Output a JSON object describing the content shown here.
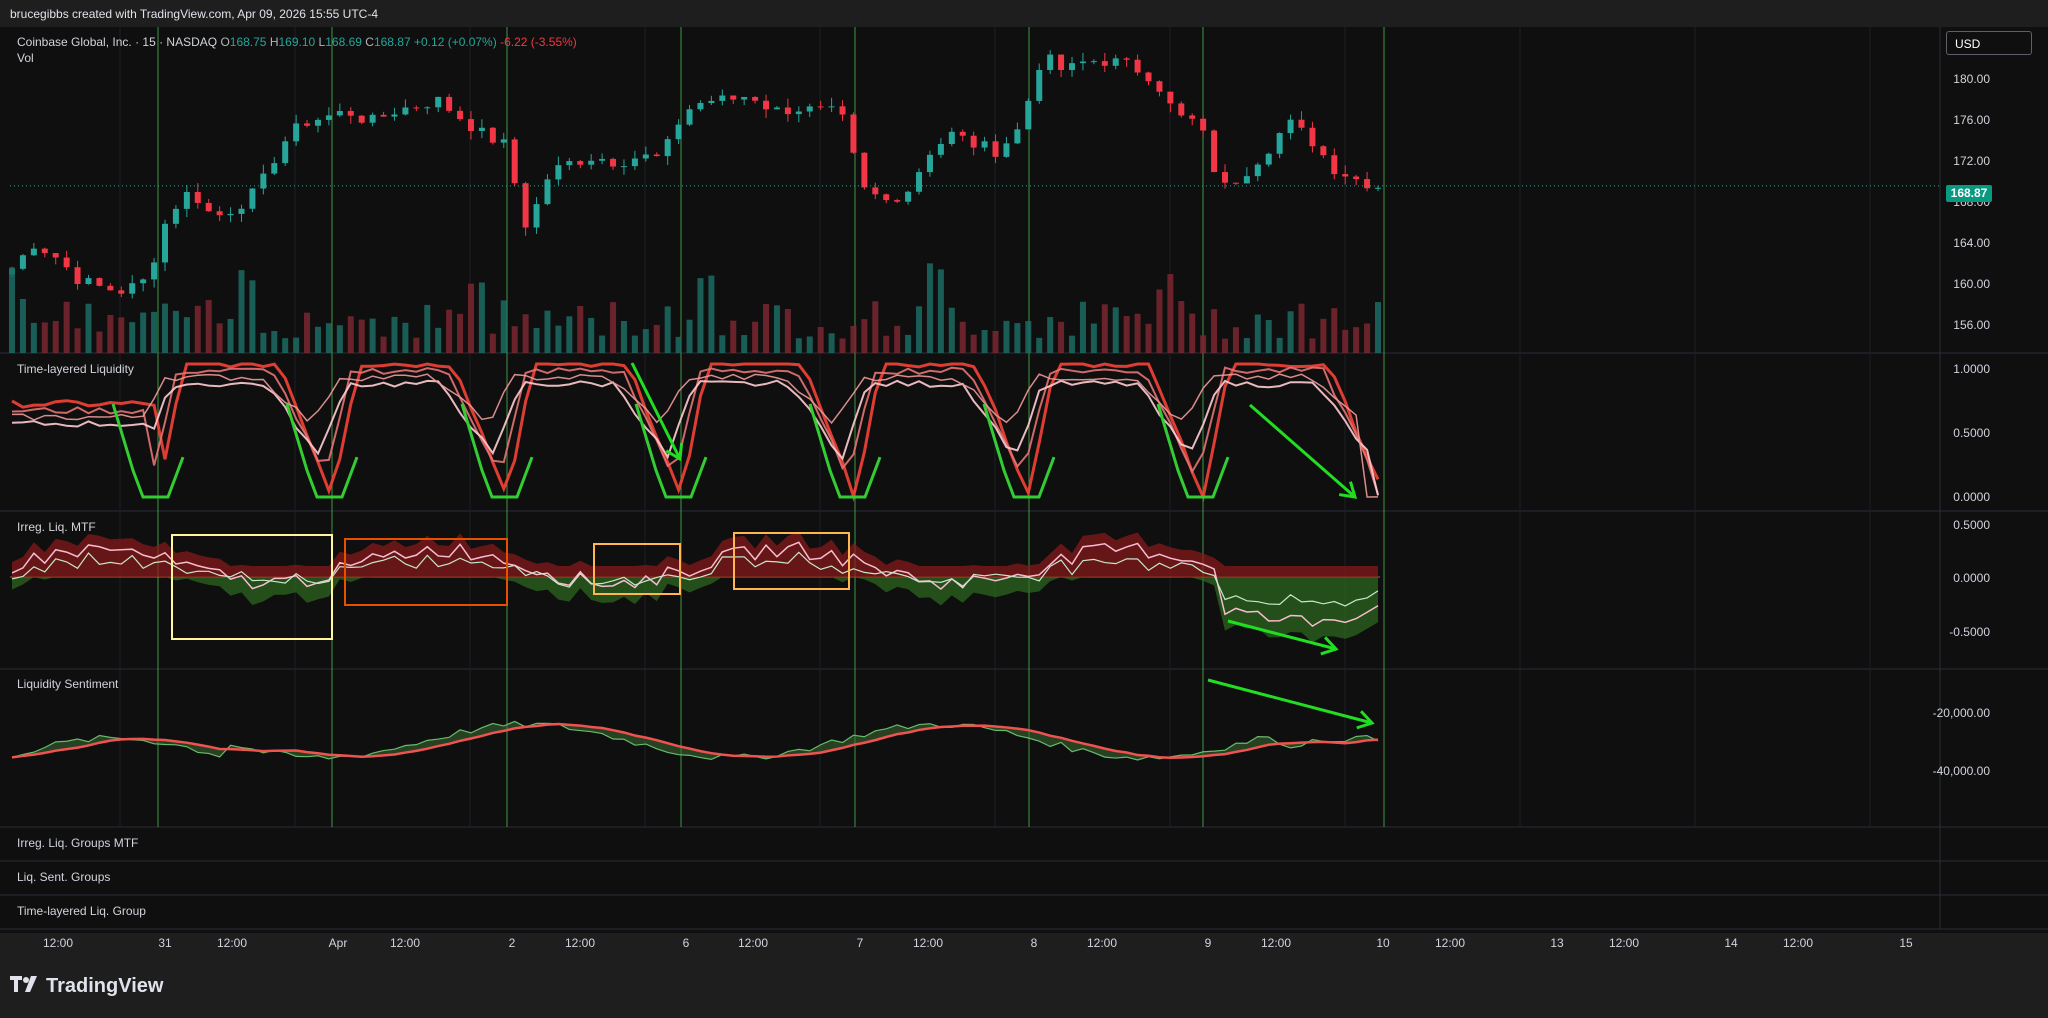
{
  "header": {
    "credit": "brucegibbs created with TradingView.com, Apr 09, 2026 15:55 UTC-4"
  },
  "main": {
    "symbol": "Coinbase Global, Inc. · 15 · NASDAQ",
    "o_label": "O",
    "o_value": "168.75",
    "h_label": "H",
    "h_value": "169.10",
    "l_label": "L",
    "l_value": "168.69",
    "c_label": "C",
    "c_value": "168.87",
    "change": "+0.12 (+0.07%)",
    "day_change": "-6.22 (-3.55%)",
    "vol_label": "Vol",
    "currency": "USD",
    "last_price": "168.87",
    "y_ticks": [
      "180.00",
      "176.00",
      "172.00",
      "168.00",
      "164.00",
      "160.00",
      "156.00"
    ]
  },
  "panes": {
    "tll": {
      "title": "Time-layered Liquidity",
      "y_ticks": [
        "1.0000",
        "0.5000",
        "0.0000"
      ]
    },
    "irreg": {
      "title": "Irreg. Liq. MTF",
      "y_ticks": [
        "0.5000",
        "0.0000",
        "-0.5000"
      ]
    },
    "sent": {
      "title": "Liquidity Sentiment",
      "y_ticks": [
        "-20,000.00",
        "-40,000.00"
      ]
    },
    "empty1": {
      "title": "Irreg. Liq. Groups MTF"
    },
    "empty2": {
      "title": "Liq. Sent. Groups"
    },
    "empty3": {
      "title": "Time-layered Liq. Group"
    }
  },
  "x_axis": {
    "labels": [
      "12:00",
      "31",
      "12:00",
      "Apr",
      "12:00",
      "2",
      "12:00",
      "6",
      "12:00",
      "7",
      "12:00",
      "8",
      "12:00",
      "9",
      "12:00",
      "10",
      "12:00",
      "13",
      "12:00",
      "14",
      "12:00",
      "15"
    ]
  },
  "footer": {
    "brand": "TradingView"
  },
  "colors": {
    "up": "#26a69a",
    "down": "#f23645",
    "session_line": "#4caf50",
    "bg": "#0f0f0f",
    "arrow": "#22dd22"
  },
  "chart_data": {
    "type": "candlestick",
    "title": "Coinbase Global, Inc. · 15 · NASDAQ",
    "ylim": [
      154,
      183
    ],
    "close_series": [
      [
        "Mar 30",
        161.5
      ],
      [
        "Mar 30",
        163.8
      ],
      [
        "Mar 30",
        162.5
      ],
      [
        "Mar 30",
        160.5
      ],
      [
        "Mar 30",
        159.8
      ],
      [
        "Mar 30",
        159.5
      ],
      [
        "Mar 31",
        160.5
      ],
      [
        "Mar 31",
        166.5
      ],
      [
        "Mar 31",
        168.5
      ],
      [
        "Mar 31",
        166.0
      ],
      [
        "Mar 31",
        167.0
      ],
      [
        "Mar 31",
        168.5
      ],
      [
        "Mar 31",
        172.5
      ],
      [
        "Mar 31",
        174.5
      ],
      [
        "Mar 31",
        175.0
      ],
      [
        "Apr 1",
        175.5
      ],
      [
        "Apr 1",
        174.5
      ],
      [
        "Apr 1",
        175.5
      ],
      [
        "Apr 1",
        176.0
      ],
      [
        "Apr 1",
        176.5
      ],
      [
        "Apr 1",
        175.0
      ],
      [
        "Apr 1",
        173.5
      ],
      [
        "Apr 1",
        172.5
      ],
      [
        "Apr 2",
        165.0
      ],
      [
        "Apr 2",
        170.0
      ],
      [
        "Apr 2",
        171.0
      ],
      [
        "Apr 2",
        171.5
      ],
      [
        "Apr 2",
        171.0
      ],
      [
        "Apr 2",
        171.5
      ],
      [
        "Apr 2",
        171.3
      ],
      [
        "Apr 6",
        175.5
      ],
      [
        "Apr 6",
        176.5
      ],
      [
        "Apr 6",
        176.5
      ],
      [
        "Apr 6",
        177.0
      ],
      [
        "Apr 6",
        175.5
      ],
      [
        "Apr 6",
        175.8
      ],
      [
        "Apr 6",
        175.5
      ],
      [
        "Apr 6",
        175.3
      ],
      [
        "Apr 7",
        168.5
      ],
      [
        "Apr 7",
        167.5
      ],
      [
        "Apr 7",
        168.5
      ],
      [
        "Apr 7",
        172.0
      ],
      [
        "Apr 7",
        173.5
      ],
      [
        "Apr 7",
        172.5
      ],
      [
        "Apr 7",
        172.0
      ],
      [
        "Apr 7",
        174.0
      ],
      [
        "Apr 8",
        180.5
      ],
      [
        "Apr 8",
        179.0
      ],
      [
        "Apr 8",
        180.0
      ],
      [
        "Apr 8",
        180.0
      ],
      [
        "Apr 8",
        179.5
      ],
      [
        "Apr 8",
        178.5
      ],
      [
        "Apr 8",
        175.0
      ],
      [
        "Apr 8",
        174.5
      ],
      [
        "Apr 9",
        168.5
      ],
      [
        "Apr 9",
        170.0
      ],
      [
        "Apr 9",
        172.0
      ],
      [
        "Apr 9",
        174.5
      ],
      [
        "Apr 9",
        173.0
      ],
      [
        "Apr 9",
        170.5
      ],
      [
        "Apr 9",
        169.5
      ],
      [
        "Apr 9",
        168.87
      ]
    ],
    "session_starts": [
      "Mar 31",
      "Apr 1",
      "Apr 2",
      "Apr 6",
      "Apr 7",
      "Apr 8",
      "Apr 9",
      "Apr 10"
    ],
    "indicators": [
      {
        "name": "Time-layered Liquidity",
        "ylim": [
          0,
          1
        ]
      },
      {
        "name": "Irreg. Liq. MTF",
        "ylim": [
          -0.5,
          0.5
        ]
      },
      {
        "name": "Liquidity Sentiment",
        "ylim": [
          -45000,
          -10000
        ]
      }
    ]
  }
}
